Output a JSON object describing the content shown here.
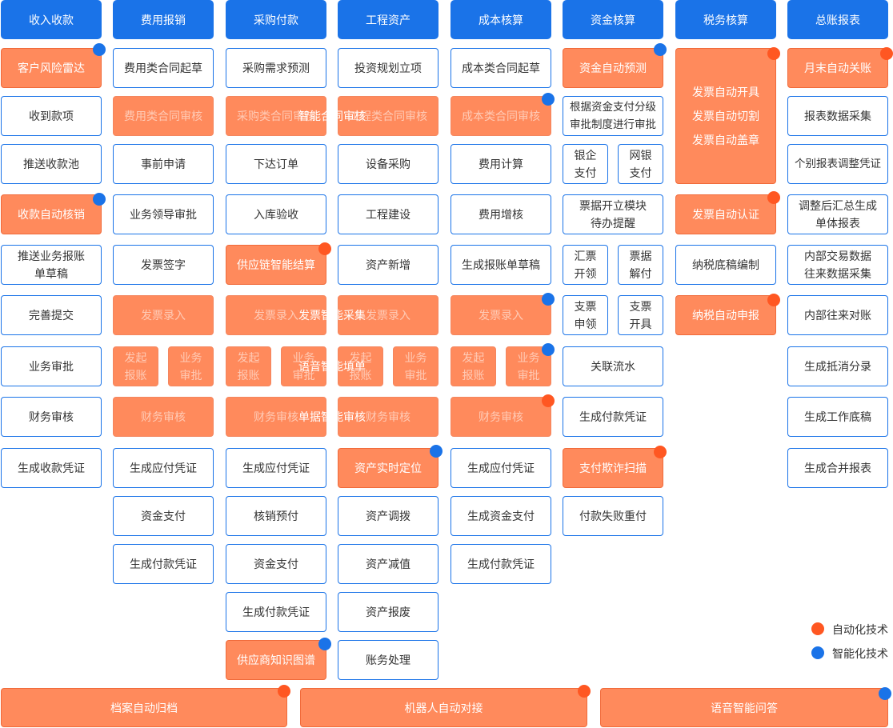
{
  "headers": [
    "收入收款",
    "费用报销",
    "采购付款",
    "工程资产",
    "成本核算",
    "资金核算",
    "税务核算",
    "总账报表"
  ],
  "col_income": [
    "客户风险雷达",
    "收到款项",
    "推送收款池",
    "收款自动核销",
    "推送业务报账单草稿",
    "完善提交",
    "业务审批",
    "财务审核",
    "生成收款凭证"
  ],
  "col_expense": [
    "费用类合同起草",
    "事前申请",
    "业务领导审批",
    "发票签字",
    "生成应付凭证",
    "资金支付",
    "生成付款凭证"
  ],
  "col_purchase": [
    "采购需求预测",
    "下达订单",
    "入库验收",
    "供应链智能结算",
    "生成应付凭证",
    "核销预付",
    "资金支付",
    "生成付款凭证",
    "供应商知识图谱"
  ],
  "col_project": [
    "投资规划立项",
    "设备采购",
    "工程建设",
    "资产新增",
    "资产实时定位",
    "资产调拨",
    "资产减值",
    "资产报废",
    "账务处理"
  ],
  "col_cost": [
    "成本类合同起草",
    "费用计算",
    "费用增核",
    "生成报账单草稿",
    "生成应付凭证",
    "生成资金支付",
    "生成付款凭证"
  ],
  "col_fund": [
    "资金自动预测",
    "根据资金支付分级审批制度进行审批",
    "银企支付",
    "网银支付",
    "票据开立模块待办提醒",
    "汇票开领",
    "票据解付",
    "支票申领",
    "支票开具",
    "关联流水",
    "生成付款凭证",
    "支付欺诈扫描",
    "付款失败重付"
  ],
  "col_tax": [
    "发票自动开具",
    "发票自动切割",
    "发票自动盖章",
    "发票自动认证",
    "纳税底稿编制",
    "纳税自动申报"
  ],
  "col_ledger": [
    "月末自动关账",
    "报表数据采集",
    "个别报表调整凭证",
    "调整后汇总生成单体报表",
    "内部交易数据往来数据采集",
    "内部往来对账",
    "生成抵消分录",
    "生成工作底稿",
    "生成合并报表"
  ],
  "bands": {
    "contract": {
      "label": "智能合同审核",
      "cells": [
        "费用类合同审核",
        "采购类合同审核",
        "工程类合同审核",
        "成本类合同审核"
      ]
    },
    "invoice": {
      "label": "发票智能采集",
      "cells": [
        "发票录入",
        "发票录入",
        "发票录入",
        "发票录入"
      ]
    },
    "voice": {
      "label": "语音智能填单",
      "cells": [
        "发起报账",
        "业务审批",
        "发起报账",
        "业务审批",
        "发起报账",
        "业务审批",
        "发起报账",
        "业务审批"
      ]
    },
    "doc": {
      "label": "单据智能审核",
      "cells": [
        "财务审核",
        "财务审核",
        "财务审核",
        "财务审核"
      ]
    }
  },
  "bottom": [
    "档案自动归档",
    "机器人自动对接",
    "语音智能问答"
  ],
  "legend": {
    "auto": "自动化技术",
    "intel": "智能化技术"
  },
  "colors": {
    "header": "#1a73e8",
    "highlight": "#ff8a5c",
    "auto_dot": "#ff5722",
    "intel_dot": "#1a73e8"
  }
}
